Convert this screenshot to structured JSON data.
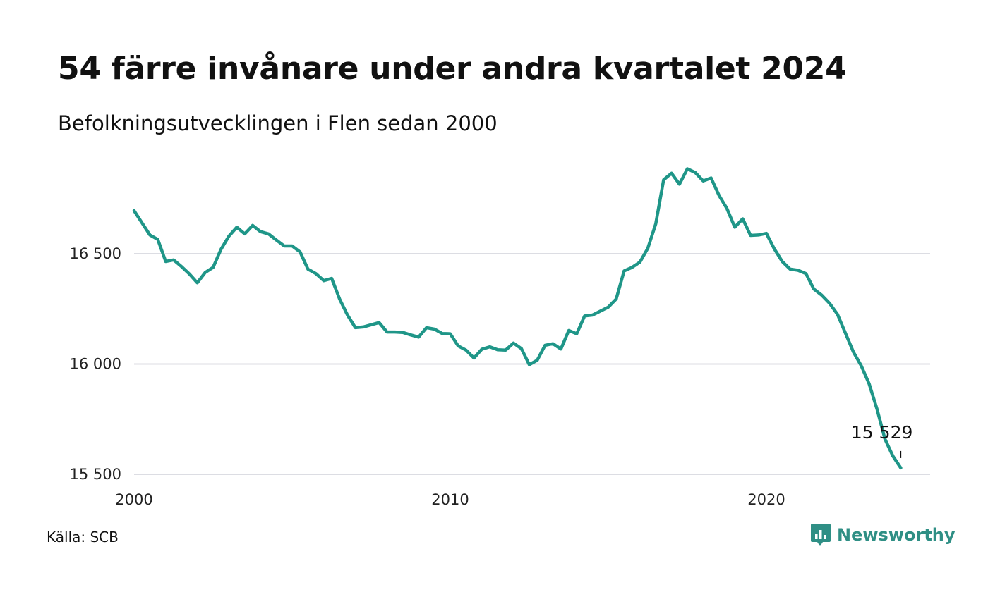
{
  "title": "54 färre invånare under andra kvartalet 2024",
  "subtitle": "Befolkningsutvecklingen i Flen sedan 2000",
  "source": "Källa: SCB",
  "brand": {
    "name": "Newsworthy",
    "icon": "chart-bubble-icon",
    "color": "#2f8f85"
  },
  "colors": {
    "line": "#1f9688",
    "grid": "#dcdde3",
    "text": "#111111"
  },
  "chart_data": {
    "type": "line",
    "title": "54 färre invånare under andra kvartalet 2024",
    "subtitle": "Befolkningsutvecklingen i Flen sedan 2000",
    "xlabel": "",
    "ylabel": "",
    "xlim": [
      2000,
      2025
    ],
    "ylim": [
      15500,
      16900
    ],
    "x_ticks": [
      {
        "value": 2000,
        "label": "2000"
      },
      {
        "value": 2010,
        "label": "2010"
      },
      {
        "value": 2020,
        "label": "2020"
      }
    ],
    "y_ticks": [
      {
        "value": 15500,
        "label": "15 500"
      },
      {
        "value": 16000,
        "label": "16 000"
      },
      {
        "value": 16500,
        "label": "16 500"
      }
    ],
    "grid": "horizontal",
    "end_label": {
      "text": "15 529",
      "x": 2024.25,
      "y": 15529
    },
    "series": [
      {
        "x": [
          2000.0,
          2000.25,
          2000.5,
          2000.75,
          2001.0,
          2001.25,
          2001.5,
          2001.75,
          2002.0,
          2002.25,
          2002.5,
          2002.75,
          2003.0,
          2003.25,
          2003.5,
          2003.75,
          2004.0,
          2004.25,
          2004.5,
          2004.75,
          2005.0,
          2005.25,
          2005.5,
          2005.75,
          2006.0,
          2006.25,
          2006.5,
          2006.75,
          2007.0,
          2007.25,
          2007.5,
          2007.75,
          2008.0,
          2008.25,
          2008.5,
          2008.75,
          2009.0,
          2009.25,
          2009.5,
          2009.75,
          2010.0,
          2010.25,
          2010.5,
          2010.75,
          2011.0,
          2011.25,
          2011.5,
          2011.75,
          2012.0,
          2012.25,
          2012.5,
          2012.75,
          2013.0,
          2013.25,
          2013.5,
          2013.75,
          2014.0,
          2014.25,
          2014.5,
          2014.75,
          2015.0,
          2015.25,
          2015.5,
          2015.75,
          2016.0,
          2016.25,
          2016.5,
          2016.75,
          2017.0,
          2017.25,
          2017.5,
          2017.75,
          2018.0,
          2018.25,
          2018.5,
          2018.75,
          2019.0,
          2019.25,
          2019.5,
          2019.75,
          2020.0,
          2020.25,
          2020.5,
          2020.75,
          2021.0,
          2021.25,
          2021.5,
          2021.75,
          2022.0,
          2022.25,
          2022.5,
          2022.75,
          2023.0,
          2023.25,
          2023.5,
          2023.75,
          2024.0,
          2024.25
        ],
        "values": [
          16695,
          16640,
          16585,
          16565,
          16465,
          16472,
          16442,
          16408,
          16368,
          16415,
          16438,
          16520,
          16580,
          16620,
          16590,
          16628,
          16600,
          16590,
          16562,
          16535,
          16535,
          16508,
          16430,
          16410,
          16378,
          16388,
          16295,
          16222,
          16165,
          16168,
          16178,
          16188,
          16145,
          16145,
          16143,
          16132,
          16122,
          16165,
          16158,
          16138,
          16137,
          16082,
          16063,
          16027,
          16067,
          16078,
          16065,
          16063,
          16095,
          16070,
          15997,
          16017,
          16085,
          16092,
          16068,
          16152,
          16137,
          16218,
          16222,
          16240,
          16258,
          16295,
          16422,
          16438,
          16462,
          16525,
          16635,
          16835,
          16865,
          16815,
          16885,
          16868,
          16830,
          16843,
          16765,
          16705,
          16620,
          16658,
          16583,
          16585,
          16592,
          16522,
          16465,
          16430,
          16425,
          16410,
          16340,
          16312,
          16275,
          16225,
          16140,
          16055,
          15992,
          15910,
          15795,
          15660,
          15583,
          15529
        ]
      }
    ]
  }
}
